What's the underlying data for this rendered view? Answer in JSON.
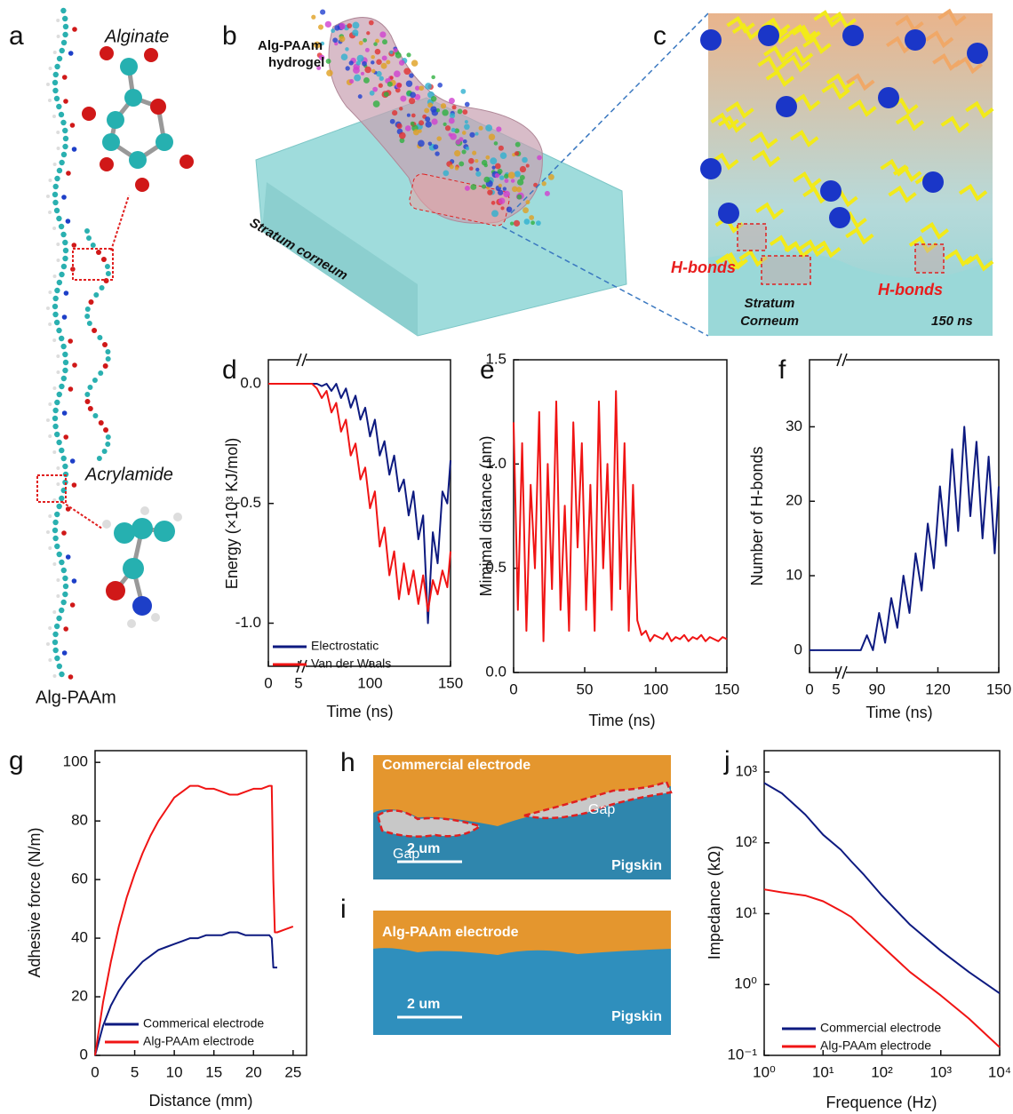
{
  "figure_panels": {
    "a": {
      "letter": "a",
      "alginate": "Alginate",
      "acrylamide": "Acrylamide",
      "caption": "Alg-PAAm"
    },
    "b": {
      "letter": "b",
      "hydrogel": [
        "Alg-PAAm",
        "hydrogel"
      ],
      "substrate": "Stratum corneum"
    },
    "c": {
      "letter": "c",
      "hbonds": [
        "H-bonds",
        "H-bonds"
      ],
      "substrate": [
        "Stratum",
        "Corneum"
      ],
      "time": "150 ns"
    },
    "h": {
      "letter": "h",
      "electrode": "Commercial electrode",
      "gaps": [
        "Gap",
        "Gap"
      ],
      "scale": "2 um",
      "substrate": "Pigskin"
    },
    "i": {
      "letter": "i",
      "electrode": "Alg-PAAm electrode",
      "scale": "2 um",
      "substrate": "Pigskin"
    }
  },
  "chart_data": [
    {
      "type": "line",
      "letter": "d",
      "xlabel": "Time (ns)",
      "ylabel": "Energy (×10³ KJ/mol)",
      "xlim": [
        0,
        150
      ],
      "xbreak": [
        5,
        60
      ],
      "xticks": [
        0,
        5,
        100,
        150
      ],
      "ylim": [
        -1.18,
        0.1
      ],
      "yticks": [
        {
          "value": 0,
          "label": "0.0"
        },
        {
          "value": -0.5,
          "label": "-0.5"
        },
        {
          "value": -1,
          "label": "-1.0"
        }
      ],
      "legend": "lower left",
      "x": [
        0,
        5,
        60,
        64,
        67,
        70,
        73,
        76,
        79,
        82,
        85,
        88,
        91,
        94,
        97,
        100,
        103,
        106,
        109,
        112,
        115,
        118,
        121,
        124,
        127,
        130,
        133,
        136,
        139,
        142,
        145,
        148,
        150
      ],
      "series": [
        {
          "name": "Electrostatic",
          "color": "#0d1a80",
          "values": [
            0,
            0,
            0,
            0,
            0,
            -0.01,
            0,
            -0.03,
            0,
            -0.06,
            -0.02,
            -0.1,
            -0.05,
            -0.15,
            -0.1,
            -0.22,
            -0.15,
            -0.3,
            -0.24,
            -0.38,
            -0.3,
            -0.45,
            -0.4,
            -0.55,
            -0.45,
            -0.65,
            -0.55,
            -1.0,
            -0.62,
            -0.75,
            -0.45,
            -0.5,
            -0.32
          ]
        },
        {
          "name": "Van der Waals",
          "color": "#f01414",
          "values": [
            0,
            0,
            0,
            0,
            -0.02,
            -0.06,
            -0.03,
            -0.12,
            -0.08,
            -0.2,
            -0.15,
            -0.3,
            -0.25,
            -0.4,
            -0.35,
            -0.52,
            -0.45,
            -0.68,
            -0.6,
            -0.8,
            -0.7,
            -0.9,
            -0.75,
            -0.88,
            -0.78,
            -0.92,
            -0.8,
            -0.95,
            -0.82,
            -0.88,
            -0.78,
            -0.85,
            -0.7
          ]
        }
      ]
    },
    {
      "type": "line",
      "letter": "e",
      "xlabel": "Time (ns)",
      "ylabel": "Mimimal distance (nm)",
      "xlim": [
        0,
        150
      ],
      "xticks": [
        0,
        50,
        100,
        150
      ],
      "ylim": [
        0,
        1.5
      ],
      "yticks": [
        {
          "value": 0,
          "label": "0.0"
        },
        {
          "value": 0.5,
          "label": "0.5"
        },
        {
          "value": 1,
          "label": "1.0"
        },
        {
          "value": 1.5,
          "label": "1.5"
        }
      ],
      "x": [
        0,
        3,
        6,
        9,
        12,
        15,
        18,
        21,
        24,
        27,
        30,
        33,
        36,
        39,
        42,
        45,
        48,
        51,
        54,
        57,
        60,
        63,
        66,
        69,
        72,
        75,
        78,
        81,
        84,
        87,
        90,
        93,
        96,
        99,
        102,
        105,
        108,
        111,
        114,
        117,
        120,
        123,
        126,
        129,
        132,
        135,
        138,
        141,
        144,
        147,
        150
      ],
      "series": [
        {
          "color": "#f01414",
          "values": [
            1.2,
            0.3,
            1.1,
            0.2,
            0.9,
            0.5,
            1.25,
            0.15,
            1.0,
            0.4,
            1.3,
            0.3,
            0.8,
            0.2,
            1.2,
            0.6,
            1.1,
            0.3,
            0.9,
            0.2,
            1.3,
            0.5,
            1.0,
            0.3,
            1.35,
            0.4,
            1.1,
            0.2,
            0.9,
            0.25,
            0.18,
            0.2,
            0.15,
            0.18,
            0.17,
            0.16,
            0.19,
            0.15,
            0.17,
            0.16,
            0.18,
            0.15,
            0.17,
            0.16,
            0.18,
            0.15,
            0.17,
            0.16,
            0.15,
            0.17,
            0.16
          ]
        }
      ]
    },
    {
      "type": "line",
      "letter": "f",
      "xlabel": "Time (ns)",
      "ylabel": "Number of H-bonds",
      "xlim": [
        0,
        150
      ],
      "xbreak": [
        5,
        76
      ],
      "xticks": [
        0,
        5,
        90,
        120,
        150
      ],
      "ylim": [
        -3,
        39
      ],
      "yticks": [
        0,
        10,
        20,
        30
      ],
      "x": [
        0,
        5,
        76,
        79,
        82,
        85,
        88,
        91,
        94,
        97,
        100,
        103,
        106,
        109,
        112,
        115,
        118,
        121,
        124,
        127,
        130,
        133,
        136,
        139,
        142,
        145,
        148,
        150
      ],
      "series": [
        {
          "color": "#0d1a80",
          "values": [
            0,
            0,
            0,
            0,
            0,
            2,
            0,
            5,
            1,
            7,
            3,
            10,
            5,
            13,
            8,
            17,
            11,
            22,
            14,
            27,
            16,
            30,
            18,
            28,
            15,
            26,
            13,
            22
          ]
        }
      ]
    },
    {
      "type": "line",
      "letter": "g",
      "xlabel": "Distance (mm)",
      "ylabel": "Adhesive force (N/m)",
      "xlim": [
        0,
        26.7
      ],
      "xticks": [
        0,
        5,
        10,
        15,
        20,
        25
      ],
      "ylim": [
        0,
        104
      ],
      "yticks": [
        0,
        20,
        40,
        60,
        80,
        100
      ],
      "legend": "lower left",
      "series": [
        {
          "name": "Commerical electrode",
          "color": "#0d1a80",
          "x": [
            0,
            1,
            2,
            3,
            4,
            5,
            6,
            7,
            8,
            9,
            10,
            11,
            12,
            13,
            14,
            15,
            16,
            17,
            18,
            19,
            20,
            21,
            22,
            22.3,
            22.5,
            23
          ],
          "values": [
            0,
            10,
            17,
            22,
            26,
            29,
            32,
            34,
            36,
            37,
            38,
            39,
            40,
            40,
            41,
            41,
            41,
            42,
            42,
            41,
            41,
            41,
            41,
            40,
            30,
            30
          ]
        },
        {
          "name": "Alg-PAAm electrode",
          "color": "#f01414",
          "x": [
            0,
            1,
            2,
            3,
            4,
            5,
            6,
            7,
            8,
            9,
            10,
            11,
            12,
            13,
            14,
            15,
            16,
            17,
            18,
            19,
            20,
            21,
            22,
            22.3,
            22.5,
            22.7,
            23,
            24,
            25
          ],
          "values": [
            0,
            18,
            32,
            44,
            54,
            62,
            69,
            75,
            80,
            84,
            88,
            90,
            92,
            92,
            91,
            91,
            90,
            89,
            89,
            90,
            91,
            91,
            92,
            92,
            60,
            42,
            42,
            43,
            44
          ]
        }
      ]
    },
    {
      "type": "line",
      "letter": "j",
      "xlabel": "Frequence (Hz)",
      "ylabel": "Impedance (kΩ)",
      "xscale": "log",
      "yscale": "log",
      "xlim": [
        1,
        10000
      ],
      "xticks": [
        {
          "value": 1,
          "label": "10⁰"
        },
        {
          "value": 10,
          "label": "10¹"
        },
        {
          "value": 100,
          "label": "10²"
        },
        {
          "value": 1000,
          "label": "10³"
        },
        {
          "value": 10000,
          "label": "10⁴"
        }
      ],
      "ylim": [
        0.1,
        2000
      ],
      "yticks": [
        {
          "value": 0.1,
          "label": "10⁻¹"
        },
        {
          "value": 1,
          "label": "10⁰"
        },
        {
          "value": 10,
          "label": "10¹"
        },
        {
          "value": 100,
          "label": "10²"
        },
        {
          "value": 1000,
          "label": "10³"
        }
      ],
      "legend": "lower left",
      "x": [
        1,
        2,
        5,
        10,
        20,
        30,
        50,
        100,
        300,
        1000,
        3000,
        10000
      ],
      "series": [
        {
          "name": "Commercial electrode",
          "color": "#0d1a80",
          "values": [
            700,
            500,
            250,
            130,
            80,
            55,
            35,
            18,
            7,
            3,
            1.5,
            0.75
          ]
        },
        {
          "name": "Alg-PAAm electrode",
          "color": "#f01414",
          "values": [
            22,
            20,
            18,
            15,
            11,
            9,
            6,
            3.5,
            1.5,
            0.7,
            0.33,
            0.13
          ]
        }
      ]
    }
  ]
}
